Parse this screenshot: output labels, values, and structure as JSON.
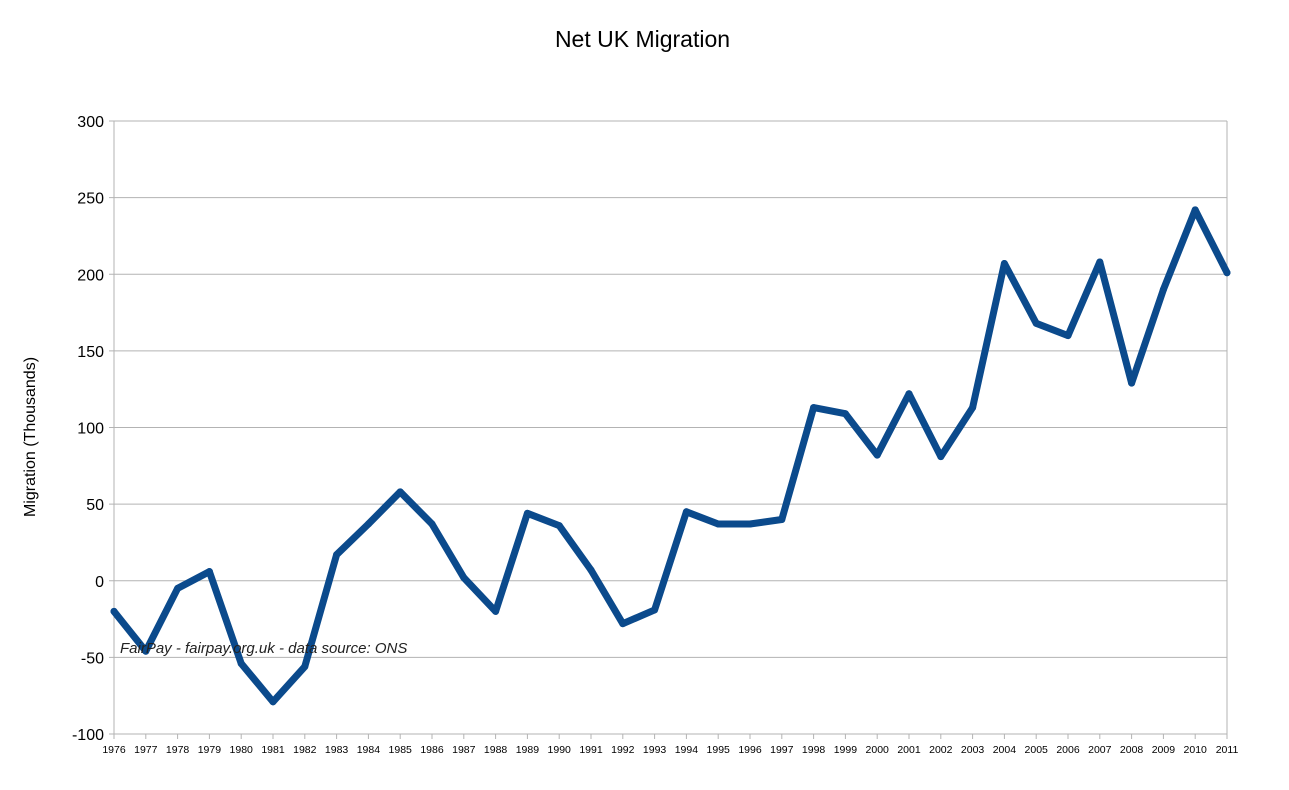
{
  "chart_data": {
    "type": "line",
    "title": "Net UK Migration",
    "xlabel": "",
    "ylabel": "Migration (Thousands)",
    "ylim": [
      -100,
      300
    ],
    "yticks": [
      -100,
      -50,
      0,
      50,
      100,
      150,
      200,
      250,
      300
    ],
    "grid": "horizontal",
    "categories": [
      "1976",
      "1977",
      "1978",
      "1979",
      "1980",
      "1981",
      "1982",
      "1983",
      "1984",
      "1985",
      "1986",
      "1987",
      "1988",
      "1989",
      "1990",
      "1991",
      "1992",
      "1993",
      "1994",
      "1995",
      "1996",
      "1997",
      "1998",
      "1999",
      "2000",
      "2001",
      "2002",
      "2003",
      "2004",
      "2005",
      "2006",
      "2007",
      "2008",
      "2009",
      "2010",
      "2011"
    ],
    "series": [
      {
        "name": "Net UK Migration",
        "color": "#0b4a8c",
        "values": [
          -20,
          -46,
          -5,
          6,
          -54,
          -79,
          -56,
          17,
          37,
          58,
          37,
          2,
          -20,
          44,
          36,
          7,
          -28,
          -19,
          45,
          37,
          37,
          40,
          113,
          109,
          82,
          122,
          81,
          113,
          207,
          168,
          160,
          208,
          129,
          190,
          242,
          201
        ]
      }
    ],
    "annotation": "FairPay - fairpay.org.uk - data source: ONS"
  }
}
